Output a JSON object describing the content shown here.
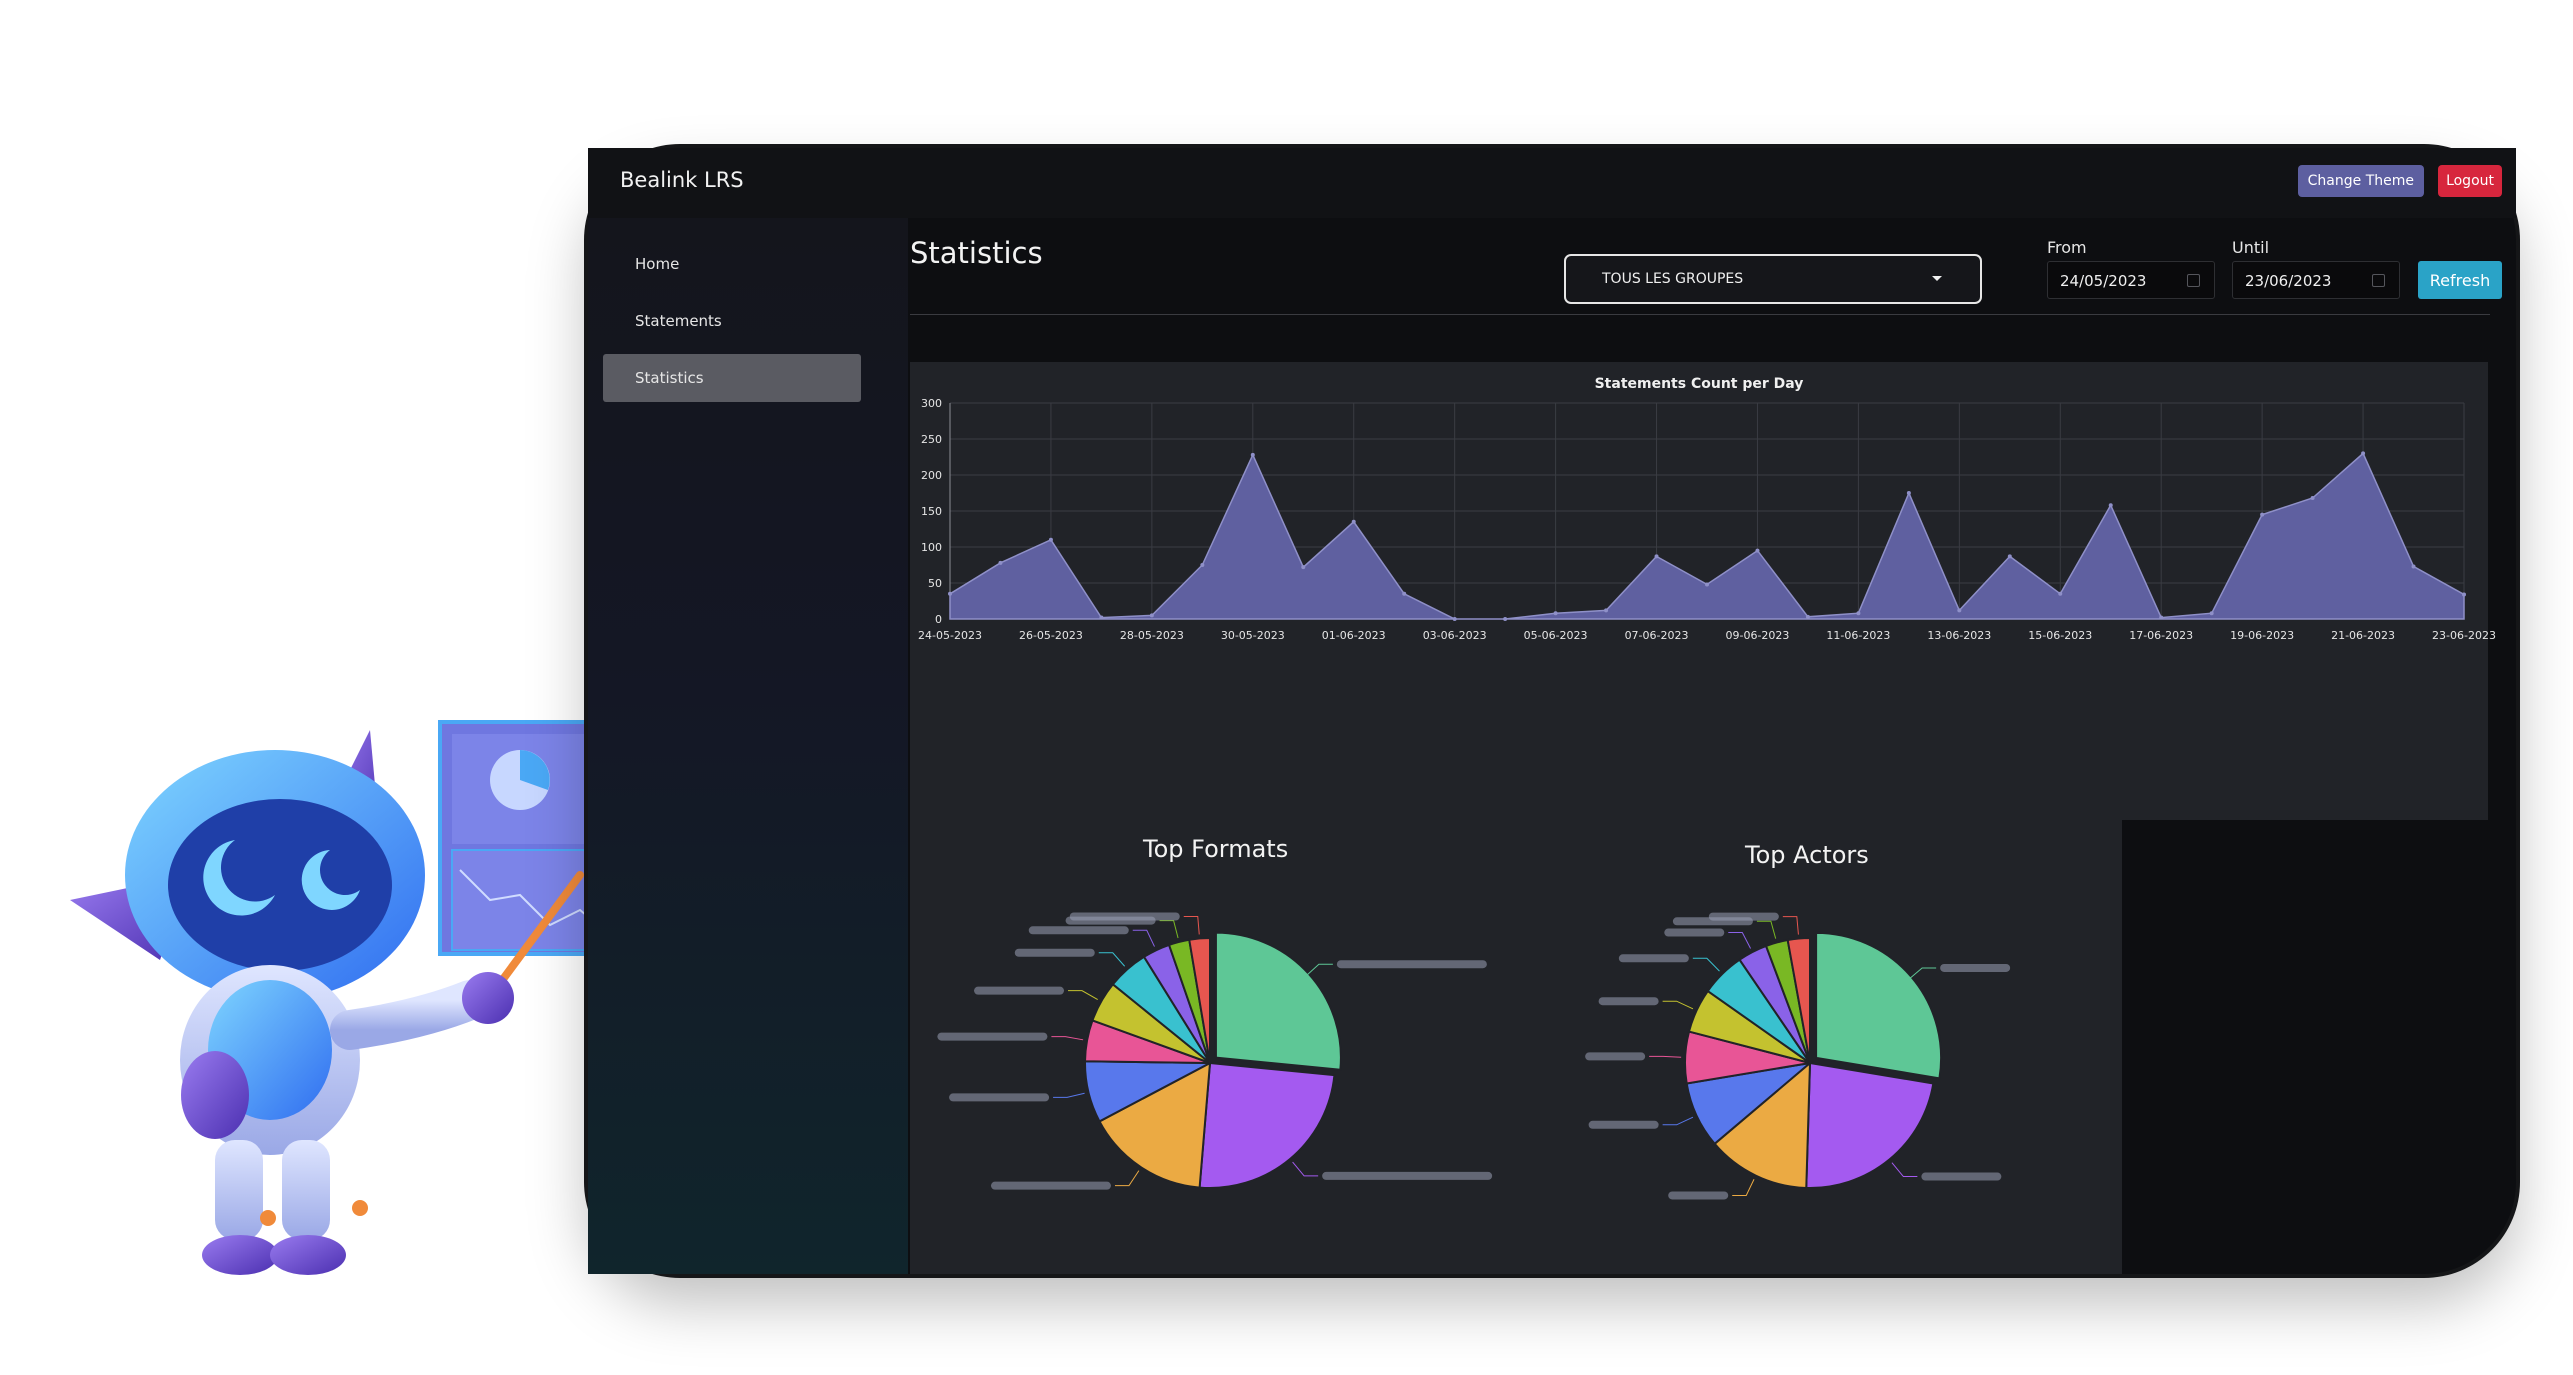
{
  "header": {
    "app_title": "Bealink LRS",
    "change_theme_label": "Change Theme",
    "logout_label": "Logout"
  },
  "sidebar": {
    "items": [
      {
        "label": "Home",
        "active": false
      },
      {
        "label": "Statements",
        "active": false
      },
      {
        "label": "Statistics",
        "active": true
      }
    ]
  },
  "main": {
    "title": "Statistics",
    "group_select": {
      "value": "TOUS LES GROUPES"
    },
    "from": {
      "label": "From",
      "value": "24/05/2023"
    },
    "until": {
      "label": "Until",
      "value": "23/06/2023"
    },
    "refresh_label": "Refresh"
  },
  "colors": {
    "accent": "#5d5fa0",
    "logout": "#d7263d",
    "refresh": "#2aa3c7",
    "area_fill": "#5f60a0",
    "panel": "#212328"
  },
  "chart_data": [
    {
      "type": "area",
      "title": "Statements Count per Day",
      "ylim": [
        0,
        300
      ],
      "yticks": [
        0,
        50,
        100,
        150,
        200,
        250,
        300
      ],
      "x_tick_labels": [
        "24-05-2023",
        "26-05-2023",
        "28-05-2023",
        "30-05-2023",
        "01-06-2023",
        "03-06-2023",
        "05-06-2023",
        "07-06-2023",
        "09-06-2023",
        "11-06-2023",
        "13-06-2023",
        "15-06-2023",
        "17-06-2023",
        "19-06-2023",
        "21-06-2023",
        "23-06-2023"
      ],
      "x": [
        "24-05-2023",
        "25-05-2023",
        "26-05-2023",
        "27-05-2023",
        "28-05-2023",
        "29-05-2023",
        "30-05-2023",
        "31-05-2023",
        "01-06-2023",
        "02-06-2023",
        "03-06-2023",
        "04-06-2023",
        "05-06-2023",
        "06-06-2023",
        "07-06-2023",
        "08-06-2023",
        "09-06-2023",
        "10-06-2023",
        "11-06-2023",
        "12-06-2023",
        "13-06-2023",
        "14-06-2023",
        "15-06-2023",
        "16-06-2023",
        "17-06-2023",
        "18-06-2023",
        "19-06-2023",
        "20-06-2023",
        "21-06-2023",
        "22-06-2023",
        "23-06-2023"
      ],
      "values": [
        35,
        78,
        110,
        2,
        5,
        75,
        228,
        72,
        135,
        35,
        0,
        0,
        8,
        12,
        87,
        48,
        95,
        3,
        8,
        175,
        12,
        87,
        35,
        158,
        2,
        8,
        145,
        168,
        230,
        73,
        34
      ],
      "grid": true,
      "legend": "none"
    },
    {
      "type": "pie",
      "title": "Top Formats",
      "values": [
        30,
        28,
        18,
        9,
        6,
        6,
        6,
        4,
        3,
        3
      ]
    },
    {
      "type": "pie",
      "title": "Top Actors",
      "values": [
        29,
        24,
        14,
        9,
        7,
        6,
        6,
        4,
        3,
        3
      ]
    }
  ],
  "pie_colors": [
    "#5ec796",
    "#a45af0",
    "#ebaa43",
    "#5878ec",
    "#e85596",
    "#c4c22f",
    "#39c1cf",
    "#8a62e8",
    "#79b824",
    "#e6564f"
  ],
  "pie_label_color": "#9aa0b4"
}
